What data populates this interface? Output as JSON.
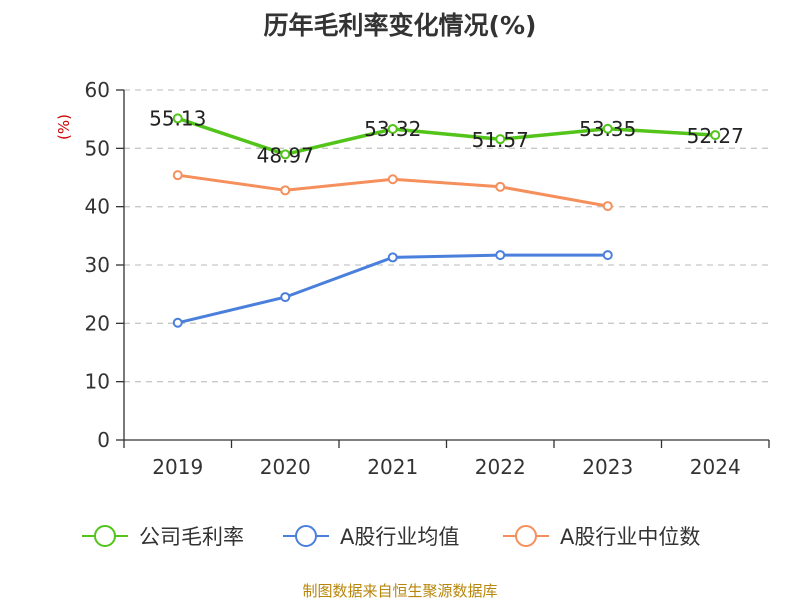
{
  "chart_data": {
    "type": "line",
    "title": "历年毛利率变化情况(%)",
    "ylabel": "(%)",
    "xlabel": "",
    "categories": [
      "2019",
      "2020",
      "2021",
      "2022",
      "2023",
      "2024"
    ],
    "ylim": [
      0,
      60
    ],
    "yticks": [
      0,
      10,
      20,
      30,
      40,
      50,
      60
    ],
    "grid": true,
    "legend_position": "bottom",
    "series": [
      {
        "name": "公司毛利率",
        "color": "#52c41a",
        "values": [
          55.13,
          48.97,
          53.32,
          51.57,
          53.35,
          52.27
        ],
        "labels": [
          "55.13",
          "48.97",
          "53.32",
          "51.57",
          "53.35",
          "52.27"
        ]
      },
      {
        "name": "A股行业均值",
        "color": "#4a7fdc",
        "values": [
          20.1,
          24.5,
          31.3,
          31.7,
          31.7,
          null
        ]
      },
      {
        "name": "A股行业中位数",
        "color": "#f58f5c",
        "values": [
          45.4,
          42.8,
          44.7,
          43.4,
          40.1,
          null
        ]
      }
    ],
    "source": "制图数据来自恒生聚源数据库"
  }
}
